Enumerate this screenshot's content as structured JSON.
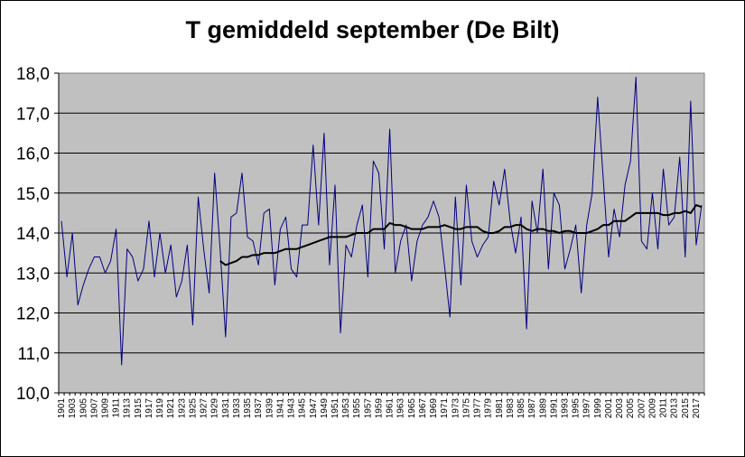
{
  "chart_data": {
    "type": "line",
    "title": "T gemiddeld september (De Bilt)",
    "xlabel": "",
    "ylabel": "",
    "ylim": [
      10.0,
      18.0
    ],
    "yticks": [
      "10,0",
      "11,0",
      "12,0",
      "13,0",
      "14,0",
      "15,0",
      "16,0",
      "17,0",
      "18,0"
    ],
    "x_start": 1901,
    "x_end": 2018,
    "xtick_labels": [
      "1901",
      "1903",
      "1905",
      "1907",
      "1909",
      "1911",
      "1913",
      "1915",
      "1917",
      "1919",
      "1921",
      "1923",
      "1925",
      "1927",
      "1929",
      "1931",
      "1933",
      "1935",
      "1937",
      "1939",
      "1941",
      "1943",
      "1945",
      "1947",
      "1949",
      "1951",
      "1953",
      "1955",
      "1957",
      "1959",
      "1961",
      "1963",
      "1965",
      "1967",
      "1969",
      "1971",
      "1973",
      "1975",
      "1977",
      "1979",
      "1981",
      "1983",
      "1985",
      "1987",
      "1989",
      "1991",
      "1993",
      "1995",
      "1997",
      "1999",
      "2001",
      "2003",
      "2005",
      "2007",
      "2009",
      "2011",
      "2013",
      "2015",
      "2017"
    ],
    "grid": true,
    "colors": {
      "plot_bg": "#c0c0c0",
      "series1": "#000080",
      "series2": "#000000"
    },
    "series": [
      {
        "x_start": 1901,
        "values": [
          14.3,
          12.9,
          14.0,
          12.2,
          12.7,
          13.1,
          13.4,
          13.4,
          13.0,
          13.3,
          14.1,
          10.7,
          13.6,
          13.4,
          12.8,
          13.1,
          14.3,
          12.9,
          14.0,
          13.0,
          13.7,
          12.4,
          12.8,
          13.7,
          11.7,
          14.9,
          13.6,
          12.5,
          15.5,
          13.6,
          11.4,
          14.4,
          14.5,
          15.5,
          13.9,
          13.8,
          13.2,
          14.5,
          14.6,
          12.7,
          14.1,
          14.4,
          13.1,
          12.9,
          14.2,
          14.2,
          16.2,
          14.2,
          16.5,
          13.2,
          15.2,
          11.5,
          13.7,
          13.4,
          14.2,
          14.7,
          12.9,
          15.8,
          15.5,
          13.6,
          16.6,
          13.0,
          13.8,
          14.2,
          12.8,
          13.8,
          14.2,
          14.4,
          14.8,
          14.4,
          13.2,
          11.9,
          14.9,
          12.7,
          15.2,
          13.8,
          13.4,
          13.7,
          13.9,
          15.3,
          14.7,
          15.6,
          14.3,
          13.5,
          14.4,
          11.6,
          14.8,
          14.0,
          15.6,
          13.1,
          15.0,
          14.7,
          13.1,
          13.6,
          14.2,
          12.5,
          14.2,
          15.0,
          17.4,
          15.4,
          13.4,
          14.6,
          13.9,
          15.2,
          15.8,
          17.9,
          13.8,
          13.6,
          15.0,
          13.6,
          15.6,
          14.2,
          14.4,
          15.9,
          13.4,
          17.3,
          13.7,
          14.7
        ]
      },
      {
        "x_start": 1930,
        "values": [
          13.3,
          13.2,
          13.25,
          13.3,
          13.4,
          13.4,
          13.45,
          13.45,
          13.5,
          13.5,
          13.5,
          13.55,
          13.6,
          13.6,
          13.6,
          13.65,
          13.7,
          13.75,
          13.8,
          13.85,
          13.9,
          13.9,
          13.9,
          13.9,
          13.95,
          14.0,
          14.0,
          14.0,
          14.1,
          14.1,
          14.1,
          14.25,
          14.2,
          14.2,
          14.15,
          14.1,
          14.1,
          14.1,
          14.15,
          14.15,
          14.15,
          14.2,
          14.15,
          14.1,
          14.1,
          14.15,
          14.15,
          14.15,
          14.05,
          14.0,
          14.0,
          14.05,
          14.15,
          14.15,
          14.2,
          14.2,
          14.1,
          14.05,
          14.1,
          14.1,
          14.05,
          14.05,
          14.0,
          14.05,
          14.05,
          14.0,
          14.0,
          14.0,
          14.05,
          14.1,
          14.2,
          14.2,
          14.3,
          14.3,
          14.3,
          14.4,
          14.5,
          14.5,
          14.5,
          14.5,
          14.5,
          14.45,
          14.45,
          14.5,
          14.5,
          14.55,
          14.5,
          14.7,
          14.65
        ]
      }
    ]
  }
}
